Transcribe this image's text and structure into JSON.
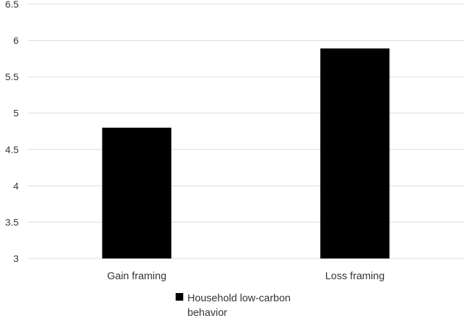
{
  "chart_data": {
    "type": "bar",
    "categories": [
      "Gain framing",
      "Loss framing"
    ],
    "series": [
      {
        "name": "Household low-carbon behavior",
        "values": [
          4.8,
          5.89
        ],
        "color": "#000000"
      }
    ],
    "ylim": [
      3,
      6.5
    ],
    "yticks": [
      "3",
      "3.5",
      "4",
      "4.5",
      "5",
      "5.5",
      "6",
      "6.5"
    ],
    "grid": true,
    "legend_position": "bottom"
  },
  "legend": {
    "label": "Household low-carbon behavior"
  }
}
